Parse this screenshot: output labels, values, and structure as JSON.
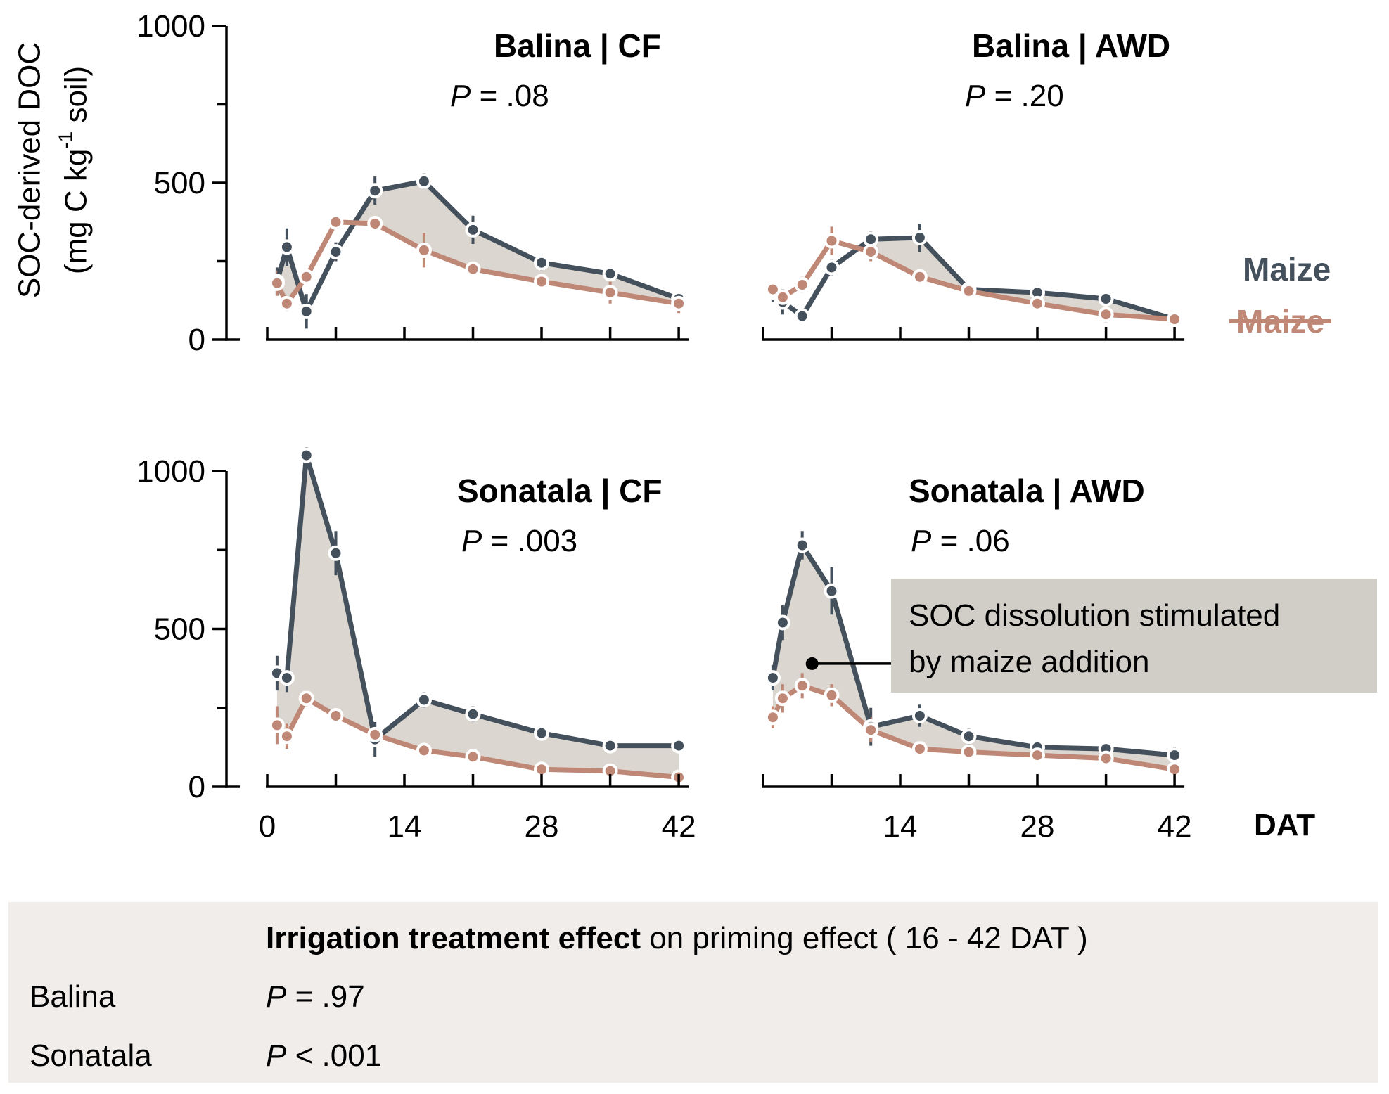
{
  "figure": {
    "y_axis_title_line1": "SOC-derived DOC",
    "y_axis_title_line2_prefix": "(mg C kg",
    "y_axis_title_sup": "-1",
    "y_axis_title_line2_suffix": " soil)",
    "x_axis_title": "DAT",
    "colors": {
      "maize": "#44505c",
      "no_maize": "#bf8775",
      "shade": "#dbd7d0",
      "annotation_bg": "#d1cec8",
      "summary_bg": "#f0edeb",
      "axis": "#000000"
    }
  },
  "legend": {
    "maize": "Maize",
    "no_maize": "Maize"
  },
  "chart_data": {
    "type": "line",
    "x": [
      1,
      2,
      4,
      7,
      11,
      16,
      21,
      28,
      35,
      42
    ],
    "xlabel": "DAT",
    "ylabel": "SOC-derived DOC (mg C kg-1 soil)",
    "ylim": [
      0,
      1000
    ],
    "y_ticks": [
      0,
      250,
      500,
      750,
      1000
    ],
    "y_tick_labels": [
      "0",
      "500",
      "1000"
    ],
    "x_ticks": [
      0,
      7,
      14,
      21,
      28,
      35,
      42
    ],
    "x_tick_labels_left": [
      0,
      14,
      28,
      42
    ],
    "x_tick_labels_right": [
      14,
      28,
      42
    ],
    "grid": false,
    "panels": [
      {
        "id": "balina-cf",
        "title": "Balina | CF",
        "p_label": "P = .08",
        "row": 0,
        "col": 0,
        "series": [
          {
            "name": "maize",
            "label": "Maize",
            "values": [
              185,
              295,
              90,
              280,
              475,
              505,
              350,
              245,
              210,
              130
            ],
            "errors": [
              45,
              60,
              55,
              30,
              45,
              25,
              45,
              25,
              20,
              15
            ]
          },
          {
            "name": "no_maize",
            "label": "Maize (crossed out)",
            "values": [
              180,
              115,
              200,
              375,
              370,
              285,
              225,
              185,
              150,
              115
            ],
            "errors": [
              40,
              25,
              20,
              15,
              15,
              55,
              20,
              15,
              35,
              30
            ]
          }
        ]
      },
      {
        "id": "balina-awd",
        "title": "Balina | AWD",
        "p_label": "P = .20",
        "row": 0,
        "col": 1,
        "series": [
          {
            "name": "maize",
            "label": "Maize",
            "values": [
              150,
              120,
              75,
              230,
              320,
              325,
              160,
              150,
              130,
              65
            ],
            "errors": [
              30,
              40,
              20,
              25,
              25,
              45,
              15,
              25,
              15,
              10
            ]
          },
          {
            "name": "no_maize",
            "label": "Maize (crossed out)",
            "values": [
              160,
              135,
              175,
              315,
              280,
              200,
              155,
              115,
              80,
              65
            ],
            "errors": [
              20,
              15,
              25,
              45,
              30,
              20,
              15,
              20,
              25,
              10
            ]
          }
        ]
      },
      {
        "id": "sonatala-cf",
        "title": "Sonatala | CF",
        "p_label": "P = .003",
        "row": 1,
        "col": 0,
        "series": [
          {
            "name": "maize",
            "label": "Maize",
            "values": [
              360,
              345,
              1050,
              740,
              150,
              275,
              230,
              170,
              130,
              130
            ],
            "errors": [
              55,
              45,
              25,
              70,
              55,
              25,
              25,
              15,
              15,
              15
            ]
          },
          {
            "name": "no_maize",
            "label": "Maize (crossed out)",
            "values": [
              195,
              160,
              280,
              225,
              165,
              115,
              95,
              55,
              50,
              30
            ],
            "errors": [
              60,
              40,
              25,
              20,
              20,
              20,
              15,
              20,
              15,
              10
            ]
          }
        ]
      },
      {
        "id": "sonatala-awd",
        "title": "Sonatala | AWD",
        "p_label": "P = .06",
        "row": 1,
        "col": 1,
        "series": [
          {
            "name": "maize",
            "label": "Maize",
            "values": [
              345,
              520,
              765,
              620,
              190,
              225,
              160,
              125,
              120,
              100
            ],
            "errors": [
              40,
              55,
              45,
              75,
              60,
              35,
              25,
              20,
              15,
              25
            ]
          },
          {
            "name": "no_maize",
            "label": "Maize (crossed out)",
            "values": [
              220,
              280,
              320,
              290,
              180,
              120,
              110,
              100,
              90,
              55
            ],
            "errors": [
              35,
              45,
              40,
              35,
              40,
              20,
              20,
              15,
              15,
              15
            ]
          }
        ]
      }
    ],
    "annotation": {
      "line1": "SOC dissolution stimulated",
      "line2": "by maize addition",
      "panel": "sonatala-awd",
      "dot_day": 5,
      "dot_value": 390
    }
  },
  "summary": {
    "heading_bold": "Irrigation treatment effect",
    "heading_rest": " on priming effect ( 16 - 42 DAT )",
    "rows": [
      {
        "site": "Balina",
        "p": "P = .97"
      },
      {
        "site": "Sonatala",
        "p": "P < .001"
      }
    ]
  }
}
